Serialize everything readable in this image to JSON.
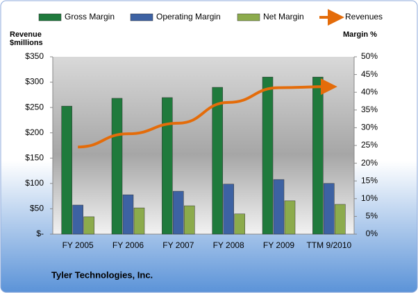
{
  "chart_data": {
    "type": "bar-line",
    "subtitle": "Tyler Technologies, Inc.",
    "y_label": "Revenue $millions",
    "y2_label": "Margin %",
    "categories": [
      "FY 2005",
      "FY 2006",
      "FY 2007",
      "FY 2008",
      "FY 2009",
      "TTM 9/2010"
    ],
    "series": [
      {
        "name": "Gross Margin",
        "color": "#1f7a3c",
        "kind": "bar",
        "axis": "y2",
        "values": [
          36.1,
          38.3,
          38.5,
          41.4,
          44.3,
          44.3
        ]
      },
      {
        "name": "Operating Margin",
        "color": "#3d62a3",
        "kind": "bar",
        "axis": "y2",
        "values": [
          8.2,
          11.1,
          12.1,
          14.1,
          15.4,
          14.3
        ]
      },
      {
        "name": "Net Margin",
        "color": "#8cab4c",
        "kind": "bar",
        "axis": "y2",
        "values": [
          4.9,
          7.4,
          8.0,
          5.7,
          9.4,
          8.4
        ]
      },
      {
        "name": "Revenues",
        "color": "#e46c0a",
        "kind": "line",
        "values": [
          172,
          198,
          219,
          260,
          289,
          291
        ]
      }
    ],
    "ylim": [
      0,
      350
    ],
    "yticks": [
      {
        "value": 0,
        "label": "$-"
      },
      {
        "value": 50,
        "label": "$50"
      },
      {
        "value": 100,
        "label": "$100"
      },
      {
        "value": 150,
        "label": "$150"
      },
      {
        "value": 200,
        "label": "$200"
      },
      {
        "value": 250,
        "label": "$250"
      },
      {
        "value": 300,
        "label": "$300"
      },
      {
        "value": 350,
        "label": "$350"
      }
    ],
    "y2lim": [
      0,
      50
    ],
    "y2ticks": [
      {
        "value": 0,
        "label": "0%"
      },
      {
        "value": 5,
        "label": "5%"
      },
      {
        "value": 10,
        "label": "10%"
      },
      {
        "value": 15,
        "label": "15%"
      },
      {
        "value": 20,
        "label": "20%"
      },
      {
        "value": 25,
        "label": "25%"
      },
      {
        "value": 30,
        "label": "30%"
      },
      {
        "value": 35,
        "label": "35%"
      },
      {
        "value": 40,
        "label": "40%"
      },
      {
        "value": 45,
        "label": "45%"
      },
      {
        "value": 50,
        "label": "50%"
      }
    ],
    "legend": "top"
  }
}
